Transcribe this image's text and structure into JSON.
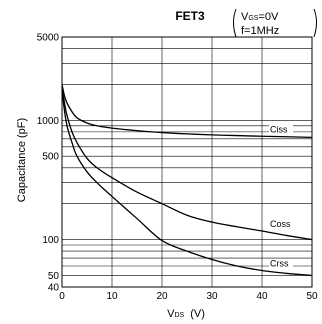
{
  "chart_data": {
    "type": "line",
    "title": "FET3",
    "conditions": {
      "vgs_prefix": "V",
      "vgs_sub": "GS",
      "vgs_value": "=0V",
      "freq": "f=1MHz"
    },
    "xlabel": {
      "main": "V",
      "sub": "DS",
      "unit": "(V)"
    },
    "ylabel": "Capacitance (pF)",
    "xlim": [
      0,
      50
    ],
    "ylim": [
      40,
      5000
    ],
    "yscale": "log",
    "x_ticks": [
      0,
      10,
      20,
      30,
      40,
      50
    ],
    "y_tick_labels": [
      {
        "value": 5000,
        "label": "5000"
      },
      {
        "value": 1000,
        "label": "1000"
      },
      {
        "value": 500,
        "label": "500"
      },
      {
        "value": 100,
        "label": "100"
      },
      {
        "value": 50,
        "label": "50"
      },
      {
        "value": 40,
        "label": "40"
      }
    ],
    "y_gridlines": [
      40,
      50,
      60,
      70,
      80,
      90,
      100,
      200,
      300,
      400,
      500,
      600,
      700,
      800,
      900,
      1000,
      2000,
      3000,
      4000,
      5000
    ],
    "x_gridlines": [
      10,
      20,
      30,
      40
    ],
    "series": [
      {
        "name": "Ciss",
        "x": [
          0,
          0.5,
          1,
          2,
          3,
          5,
          7,
          10,
          15,
          20,
          25,
          30,
          35,
          40,
          45,
          50
        ],
        "y": [
          2000,
          1600,
          1400,
          1180,
          1050,
          950,
          900,
          860,
          820,
          790,
          770,
          755,
          745,
          735,
          728,
          720
        ]
      },
      {
        "name": "Coss",
        "x": [
          0,
          0.5,
          1,
          2,
          3,
          5,
          7,
          10,
          15,
          20,
          25,
          30,
          35,
          40,
          45,
          50
        ],
        "y": [
          1900,
          1400,
          1100,
          800,
          650,
          480,
          400,
          330,
          250,
          200,
          160,
          140,
          128,
          118,
          108,
          100
        ]
      },
      {
        "name": "Crss",
        "x": [
          0,
          0.5,
          1,
          2,
          3,
          5,
          7,
          10,
          15,
          20,
          25,
          30,
          35,
          40,
          45,
          50
        ],
        "y": [
          1800,
          1200,
          900,
          650,
          500,
          370,
          300,
          230,
          150,
          98,
          80,
          68,
          60,
          55,
          52,
          50
        ]
      }
    ],
    "grid": true
  }
}
